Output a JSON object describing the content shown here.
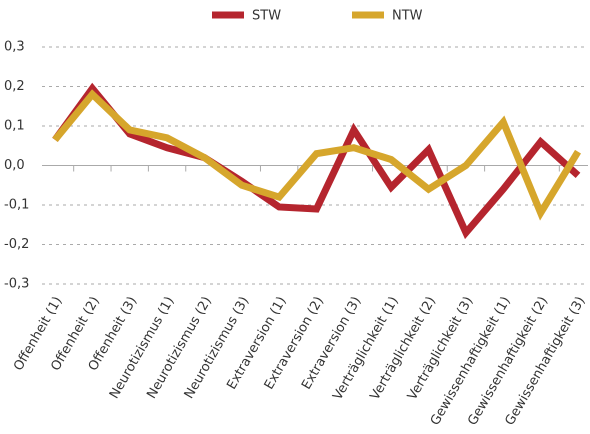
{
  "chart_data": {
    "type": "line",
    "categories": [
      "Offenheit (1)",
      "Offenheit (2)",
      "Offenheit (3)",
      "Neurotizismus (1)",
      "Neurotizismus (2)",
      "Neurotizismus (3)",
      "Extraversion (1)",
      "Extraversion (2)",
      "Extraversion (3)",
      "Verträglichkeit (1)",
      "Verträglichkeit (2)",
      "Verträglichkeit (3)",
      "Gewissenhaftigkeit (1)",
      "Gewissenhaftigkeit (2)",
      "Gewissenhaftigkeit (3)"
    ],
    "series": [
      {
        "name": "STW",
        "color": "#b5252e",
        "values": [
          0.065,
          0.195,
          0.08,
          0.045,
          0.02,
          -0.04,
          -0.105,
          -0.11,
          0.09,
          -0.055,
          0.04,
          -0.17,
          -0.06,
          0.06,
          -0.025
        ]
      },
      {
        "name": "NTW",
        "color": "#d6a62c",
        "values": [
          0.065,
          0.18,
          0.09,
          0.07,
          0.02,
          -0.05,
          -0.08,
          0.03,
          0.045,
          0.015,
          -0.06,
          0.0,
          0.11,
          -0.12,
          0.035
        ]
      }
    ],
    "ylim": [
      -0.3,
      0.3
    ],
    "yticks": [
      {
        "value": 0.3,
        "label": "0,3"
      },
      {
        "value": 0.2,
        "label": "0,2"
      },
      {
        "value": 0.1,
        "label": "0,1"
      },
      {
        "value": 0,
        "label": "0,0"
      },
      {
        "value": -0.1,
        "label": "-0,1"
      },
      {
        "value": -0.2,
        "label": "-0,2"
      },
      {
        "value": -0.3,
        "label": "-0,3"
      }
    ],
    "grid": true,
    "legend": "top"
  }
}
